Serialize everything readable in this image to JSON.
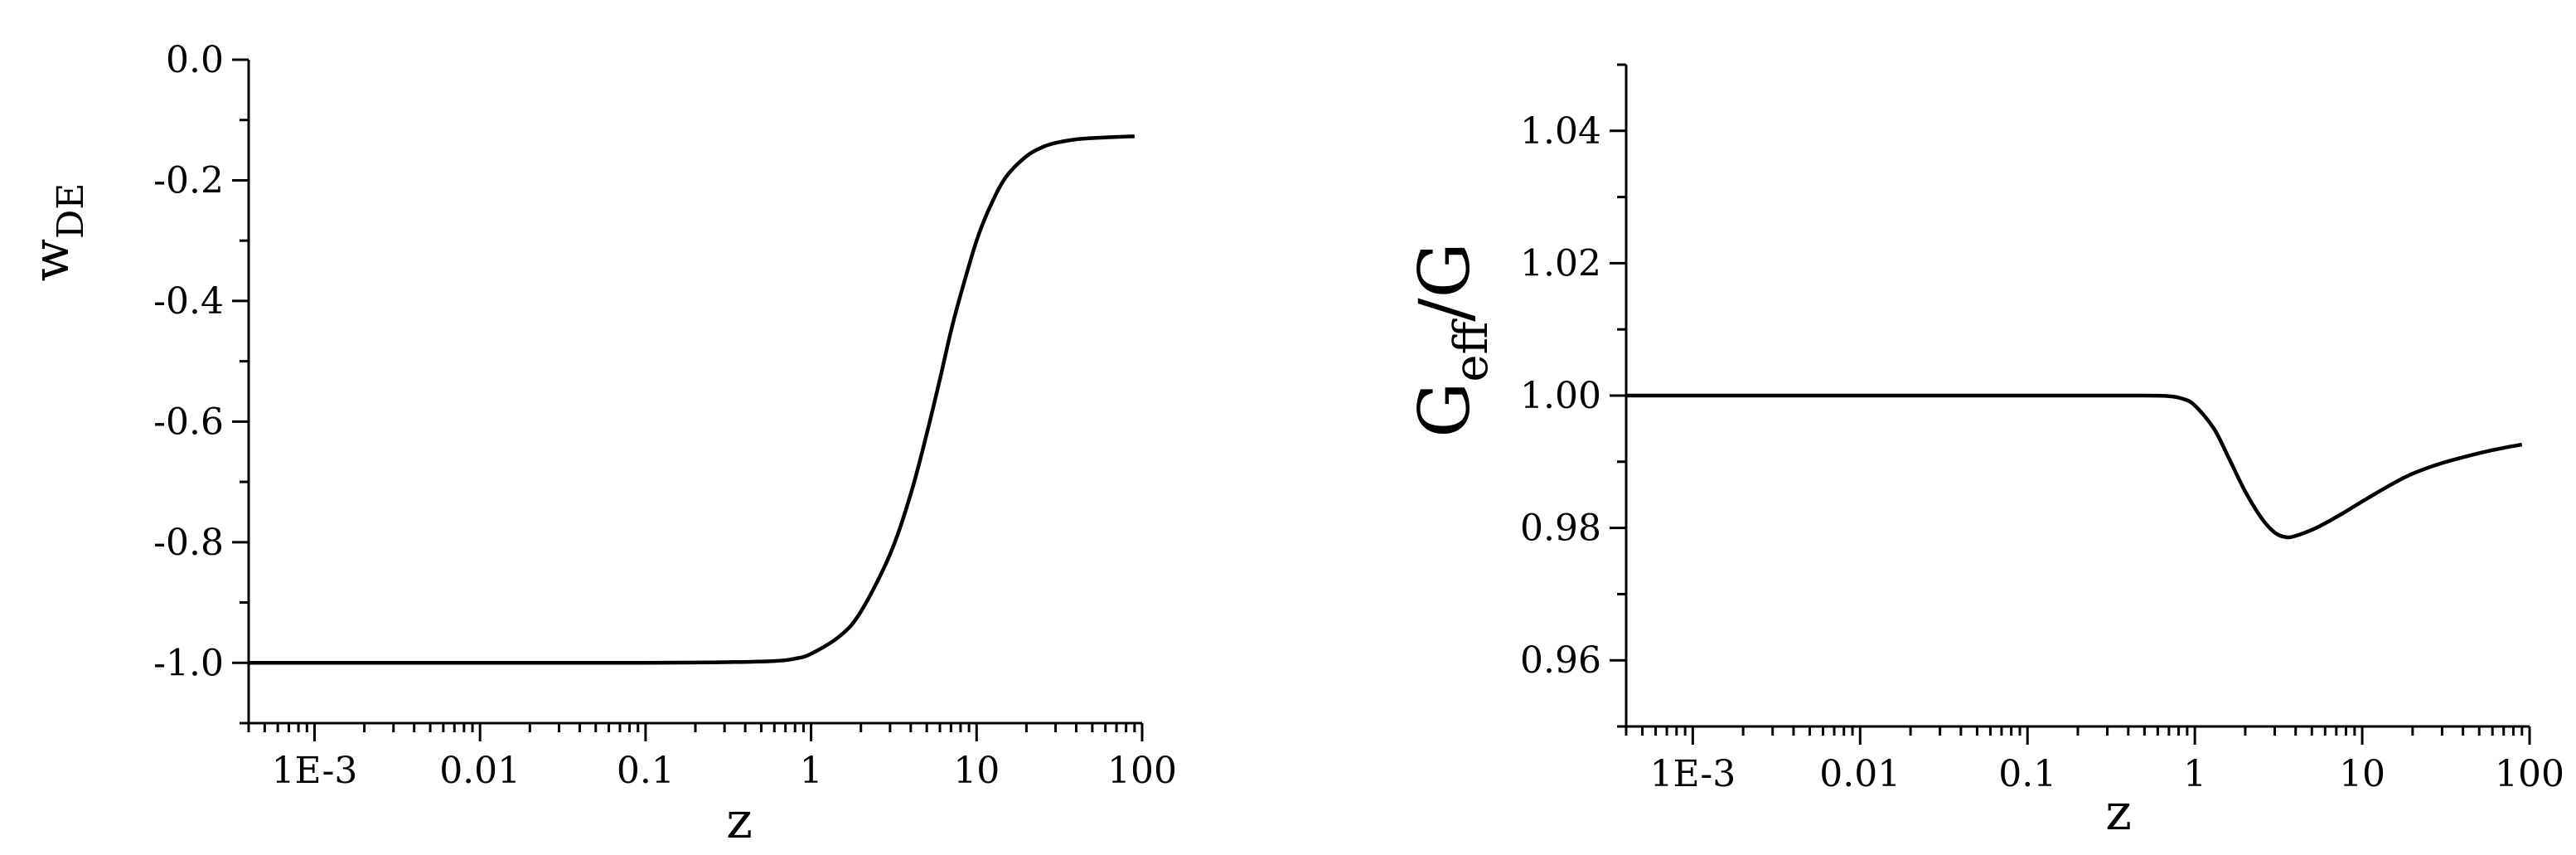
{
  "chart_data": [
    {
      "type": "line",
      "xlabel": "z",
      "ylabel": {
        "main": "w",
        "sub": "DE"
      },
      "xscale": "log",
      "xlim": [
        0.0004,
        100
      ],
      "ylim": [
        -1.1,
        0.0
      ],
      "xticks": [
        0.001,
        0.01,
        0.1,
        1,
        10,
        100
      ],
      "xtick_labels": [
        "1E-3",
        "0.01",
        "0.1",
        "1",
        "10",
        "100"
      ],
      "yticks": [
        0.0,
        -0.2,
        -0.4,
        -0.6,
        -0.8,
        -1.0
      ],
      "ytick_labels": [
        "0.0",
        "-0.2",
        "-0.4",
        "-0.6",
        "-0.8",
        "-1.0"
      ],
      "grid": false,
      "series": [
        {
          "x": [
            0.0004,
            0.01,
            0.1,
            0.3,
            0.6,
            0.8,
            1.0,
            1.5,
            2,
            3,
            4,
            5,
            6,
            7,
            8,
            10,
            12,
            15,
            20,
            25,
            30,
            40,
            50,
            70,
            90
          ],
          "y": [
            -1.0,
            -1.0,
            -1.0,
            -0.999,
            -0.997,
            -0.993,
            -0.985,
            -0.955,
            -0.915,
            -0.82,
            -0.72,
            -0.62,
            -0.53,
            -0.45,
            -0.39,
            -0.3,
            -0.245,
            -0.195,
            -0.16,
            -0.145,
            -0.138,
            -0.132,
            -0.13,
            -0.128,
            -0.127
          ]
        }
      ]
    },
    {
      "type": "line",
      "xlabel": "z",
      "ylabel": {
        "main": "G",
        "sub": "eff",
        "suffix": "/G"
      },
      "xscale": "log",
      "xlim": [
        0.0004,
        100
      ],
      "ylim": [
        0.95,
        1.05
      ],
      "xticks": [
        0.001,
        0.01,
        0.1,
        1,
        10,
        100
      ],
      "xtick_labels": [
        "1E-3",
        "0.01",
        "0.1",
        "1",
        "10",
        "100"
      ],
      "yticks": [
        1.04,
        1.02,
        1.0,
        0.98,
        0.96
      ],
      "ytick_labels": [
        "1.04",
        "1.02",
        "1.00",
        "0.98",
        "0.96"
      ],
      "grid": false,
      "series": [
        {
          "x": [
            0.0004,
            0.01,
            0.1,
            0.5,
            0.7,
            0.85,
            1.0,
            1.3,
            1.6,
            2,
            2.5,
            3,
            3.5,
            4,
            5,
            6,
            8,
            10,
            15,
            20,
            30,
            50,
            70,
            90
          ],
          "y": [
            1.0,
            1.0,
            1.0,
            1.0,
            0.9999,
            0.9995,
            0.9985,
            0.995,
            0.9905,
            0.9855,
            0.9815,
            0.9793,
            0.9786,
            0.9788,
            0.9797,
            0.9807,
            0.9825,
            0.984,
            0.9866,
            0.9882,
            0.9898,
            0.9913,
            0.9921,
            0.9926
          ]
        }
      ]
    }
  ]
}
